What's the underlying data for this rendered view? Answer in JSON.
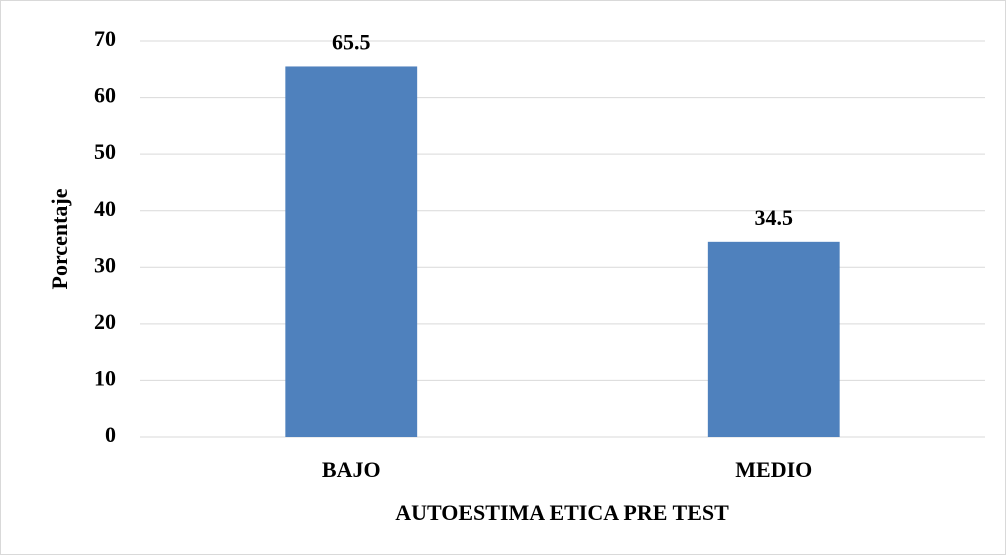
{
  "chart_data": {
    "type": "bar",
    "xlabel": "AUTOESTIMA ETICA PRE TEST",
    "ylabel": "Porcentaje",
    "categories": [
      "BAJO",
      "MEDIO"
    ],
    "values": [
      65.5,
      34.5
    ],
    "color": "#4f81bd",
    "ylim": [
      0,
      70
    ],
    "yticks": [
      0,
      10,
      20,
      30,
      40,
      50,
      60,
      70
    ],
    "grid": true,
    "data_labels": true
  }
}
